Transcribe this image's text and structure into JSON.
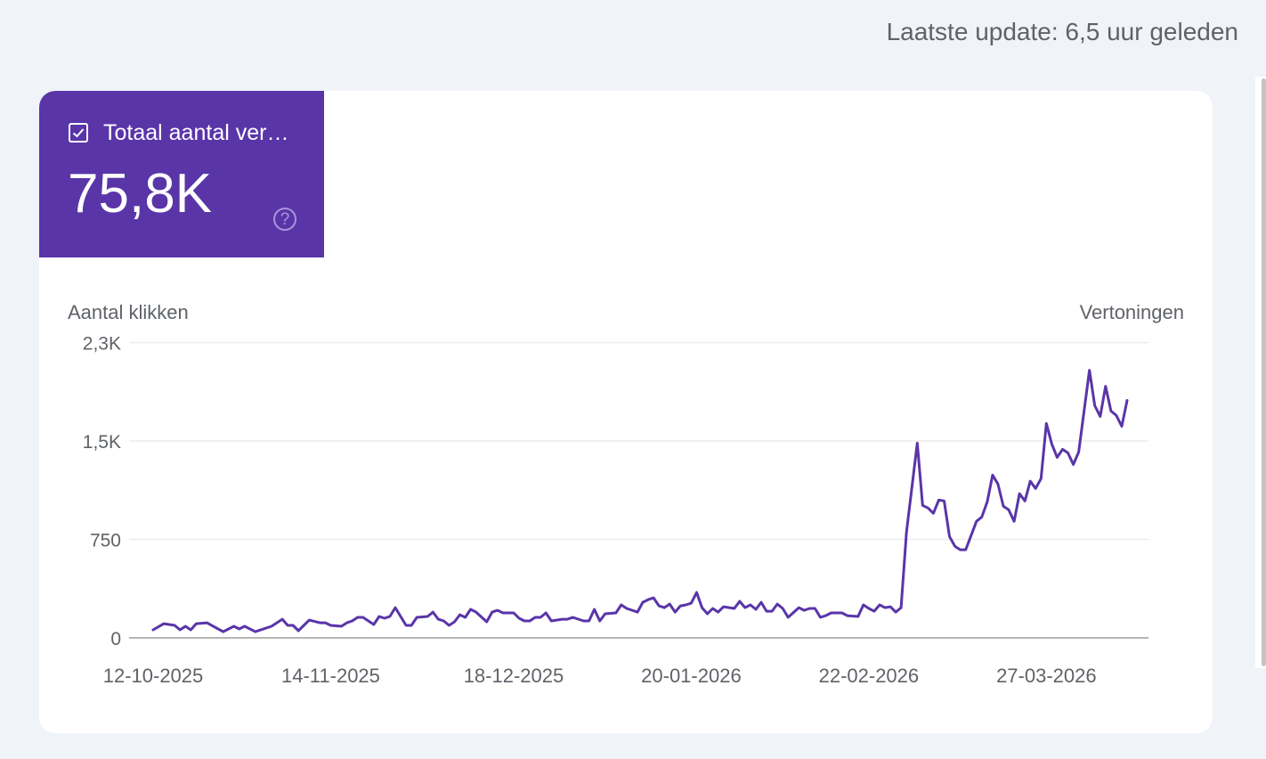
{
  "header": {
    "last_update": "Laatste update: 6,5 uur geleden"
  },
  "metric_tile": {
    "label": "Totaal aantal ver…",
    "value": "75,8K",
    "checked": true,
    "help_icon": "?",
    "color": "#5935a8"
  },
  "chart_data": {
    "type": "line",
    "ylabel_left": "Aantal klikken",
    "ylabel_right": "Vertoningen",
    "ylim": [
      0,
      2250
    ],
    "yticks": [
      {
        "value": 0,
        "label": "0"
      },
      {
        "value": 750,
        "label": "750"
      },
      {
        "value": 1500,
        "label": "1,5K"
      },
      {
        "value": 2250,
        "label": "2,3K"
      }
    ],
    "xlim": [
      "12-10-2025",
      "11-04-2026"
    ],
    "xticks": [
      "12-10-2025",
      "14-11-2025",
      "18-12-2025",
      "20-01-2026",
      "22-02-2026",
      "27-03-2026"
    ],
    "grid": true,
    "legend": "none",
    "series": [
      {
        "color": "#5935a8",
        "points": [
          [
            "12-10-2025",
            61
          ],
          [
            "14-10-2025",
            108
          ],
          [
            "16-10-2025",
            95
          ],
          [
            "17-10-2025",
            61
          ],
          [
            "18-10-2025",
            88
          ],
          [
            "19-10-2025",
            61
          ],
          [
            "20-10-2025",
            108
          ],
          [
            "22-10-2025",
            115
          ],
          [
            "25-10-2025",
            47
          ],
          [
            "27-10-2025",
            88
          ],
          [
            "28-10-2025",
            68
          ],
          [
            "29-10-2025",
            88
          ],
          [
            "31-10-2025",
            47
          ],
          [
            "03-11-2025",
            88
          ],
          [
            "05-11-2025",
            142
          ],
          [
            "06-11-2025",
            95
          ],
          [
            "07-11-2025",
            95
          ],
          [
            "08-11-2025",
            54
          ],
          [
            "10-11-2025",
            135
          ],
          [
            "12-11-2025",
            115
          ],
          [
            "13-11-2025",
            115
          ],
          [
            "14-11-2025",
            95
          ],
          [
            "16-11-2025",
            88
          ],
          [
            "17-11-2025",
            115
          ],
          [
            "18-11-2025",
            129
          ],
          [
            "19-11-2025",
            156
          ],
          [
            "20-11-2025",
            156
          ],
          [
            "22-11-2025",
            102
          ],
          [
            "23-11-2025",
            163
          ],
          [
            "24-11-2025",
            149
          ],
          [
            "25-11-2025",
            163
          ],
          [
            "26-11-2025",
            230
          ],
          [
            "28-11-2025",
            95
          ],
          [
            "29-11-2025",
            95
          ],
          [
            "30-11-2025",
            156
          ],
          [
            "02-12-2025",
            163
          ],
          [
            "03-12-2025",
            196
          ],
          [
            "04-12-2025",
            142
          ],
          [
            "05-12-2025",
            129
          ],
          [
            "06-12-2025",
            95
          ],
          [
            "07-12-2025",
            122
          ],
          [
            "08-12-2025",
            176
          ],
          [
            "09-12-2025",
            156
          ],
          [
            "10-12-2025",
            217
          ],
          [
            "11-12-2025",
            196
          ],
          [
            "13-12-2025",
            122
          ],
          [
            "14-12-2025",
            196
          ],
          [
            "15-12-2025",
            210
          ],
          [
            "16-12-2025",
            190
          ],
          [
            "18-12-2025",
            190
          ],
          [
            "19-12-2025",
            149
          ],
          [
            "20-12-2025",
            129
          ],
          [
            "21-12-2025",
            129
          ],
          [
            "22-12-2025",
            156
          ],
          [
            "23-12-2025",
            156
          ],
          [
            "24-12-2025",
            190
          ],
          [
            "25-12-2025",
            129
          ],
          [
            "27-12-2025",
            142
          ],
          [
            "28-12-2025",
            142
          ],
          [
            "29-12-2025",
            156
          ],
          [
            "31-12-2025",
            129
          ],
          [
            "01-01-2026",
            129
          ],
          [
            "02-01-2026",
            217
          ],
          [
            "03-01-2026",
            129
          ],
          [
            "04-01-2026",
            183
          ],
          [
            "06-01-2026",
            190
          ],
          [
            "07-01-2026",
            251
          ],
          [
            "08-01-2026",
            224
          ],
          [
            "10-01-2026",
            196
          ],
          [
            "11-01-2026",
            271
          ],
          [
            "12-01-2026",
            291
          ],
          [
            "13-01-2026",
            305
          ],
          [
            "14-01-2026",
            244
          ],
          [
            "15-01-2026",
            230
          ],
          [
            "16-01-2026",
            257
          ],
          [
            "17-01-2026",
            196
          ],
          [
            "18-01-2026",
            244
          ],
          [
            "19-01-2026",
            251
          ],
          [
            "20-01-2026",
            264
          ],
          [
            "21-01-2026",
            346
          ],
          [
            "22-01-2026",
            230
          ],
          [
            "23-01-2026",
            183
          ],
          [
            "24-01-2026",
            224
          ],
          [
            "25-01-2026",
            196
          ],
          [
            "26-01-2026",
            237
          ],
          [
            "28-01-2026",
            224
          ],
          [
            "29-01-2026",
            278
          ],
          [
            "30-01-2026",
            230
          ],
          [
            "31-01-2026",
            251
          ],
          [
            "01-02-2026",
            217
          ],
          [
            "02-02-2026",
            271
          ],
          [
            "03-02-2026",
            203
          ],
          [
            "04-02-2026",
            203
          ],
          [
            "05-02-2026",
            257
          ],
          [
            "06-02-2026",
            224
          ],
          [
            "07-02-2026",
            156
          ],
          [
            "09-02-2026",
            230
          ],
          [
            "10-02-2026",
            210
          ],
          [
            "11-02-2026",
            224
          ],
          [
            "12-02-2026",
            224
          ],
          [
            "13-02-2026",
            156
          ],
          [
            "14-02-2026",
            169
          ],
          [
            "15-02-2026",
            190
          ],
          [
            "17-02-2026",
            190
          ],
          [
            "18-02-2026",
            169
          ],
          [
            "20-02-2026",
            163
          ],
          [
            "21-02-2026",
            251
          ],
          [
            "22-02-2026",
            224
          ],
          [
            "23-02-2026",
            203
          ],
          [
            "24-02-2026",
            251
          ],
          [
            "25-02-2026",
            230
          ],
          [
            "26-02-2026",
            237
          ],
          [
            "27-02-2026",
            196
          ],
          [
            "28-02-2026",
            230
          ],
          [
            "01-03-2026",
            806
          ],
          [
            "03-03-2026",
            1484
          ],
          [
            "04-03-2026",
            1009
          ],
          [
            "05-03-2026",
            989
          ],
          [
            "06-03-2026",
            949
          ],
          [
            "07-03-2026",
            1050
          ],
          [
            "08-03-2026",
            1043
          ],
          [
            "09-03-2026",
            772
          ],
          [
            "10-03-2026",
            698
          ],
          [
            "11-03-2026",
            671
          ],
          [
            "12-03-2026",
            671
          ],
          [
            "14-03-2026",
            888
          ],
          [
            "15-03-2026",
            921
          ],
          [
            "16-03-2026",
            1037
          ],
          [
            "17-03-2026",
            1240
          ],
          [
            "18-03-2026",
            1172
          ],
          [
            "19-03-2026",
            1003
          ],
          [
            "20-03-2026",
            976
          ],
          [
            "21-03-2026",
            888
          ],
          [
            "22-03-2026",
            1098
          ],
          [
            "23-03-2026",
            1043
          ],
          [
            "24-03-2026",
            1193
          ],
          [
            "25-03-2026",
            1138
          ],
          [
            "26-03-2026",
            1213
          ],
          [
            "27-03-2026",
            1633
          ],
          [
            "28-03-2026",
            1477
          ],
          [
            "29-03-2026",
            1375
          ],
          [
            "30-03-2026",
            1436
          ],
          [
            "31-03-2026",
            1409
          ],
          [
            "01-04-2026",
            1321
          ],
          [
            "02-04-2026",
            1416
          ],
          [
            "04-04-2026",
            2039
          ],
          [
            "05-04-2026",
            1768
          ],
          [
            "06-04-2026",
            1687
          ],
          [
            "07-04-2026",
            1917
          ],
          [
            "08-04-2026",
            1728
          ],
          [
            "09-04-2026",
            1694
          ],
          [
            "10-04-2026",
            1612
          ],
          [
            "11-04-2026",
            1809
          ]
        ]
      }
    ]
  }
}
